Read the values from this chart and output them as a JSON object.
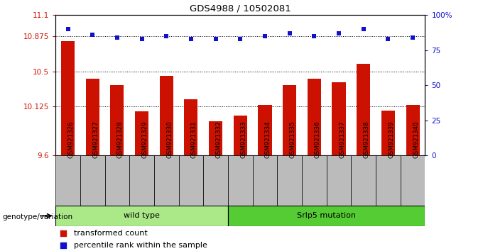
{
  "title": "GDS4988 / 10502081",
  "samples": [
    "GSM921326",
    "GSM921327",
    "GSM921328",
    "GSM921329",
    "GSM921330",
    "GSM921331",
    "GSM921332",
    "GSM921333",
    "GSM921334",
    "GSM921335",
    "GSM921336",
    "GSM921337",
    "GSM921338",
    "GSM921339",
    "GSM921340"
  ],
  "bar_values": [
    10.82,
    10.42,
    10.35,
    10.07,
    10.45,
    10.2,
    9.97,
    10.03,
    10.14,
    10.35,
    10.42,
    10.38,
    10.58,
    10.08,
    10.14
  ],
  "dot_values_pct": [
    90,
    86,
    84,
    83,
    85,
    83,
    83,
    83,
    85,
    87,
    85,
    87,
    90,
    83,
    84
  ],
  "ymin": 9.6,
  "ymax": 11.1,
  "yticks": [
    9.6,
    10.125,
    10.5,
    10.875,
    11.1
  ],
  "ytick_labels": [
    "9.6",
    "10.125",
    "10.5",
    "10.875",
    "11.1"
  ],
  "right_yticks": [
    0,
    25,
    50,
    75,
    100
  ],
  "right_ytick_labels": [
    "0",
    "25",
    "50",
    "75",
    "100%"
  ],
  "hlines": [
    10.125,
    10.5,
    10.875
  ],
  "bar_color": "#cc1100",
  "dot_color": "#1111cc",
  "wt_count": 7,
  "mut_count": 8,
  "wild_label": "wild type",
  "mutation_label": "Srlp5 mutation",
  "genotype_label": "genotype/variation",
  "legend_bar": "transformed count",
  "legend_dot": "percentile rank within the sample",
  "tick_area_color": "#bbbbbb",
  "wt_box_color": "#aae888",
  "mut_box_color": "#55cc33"
}
